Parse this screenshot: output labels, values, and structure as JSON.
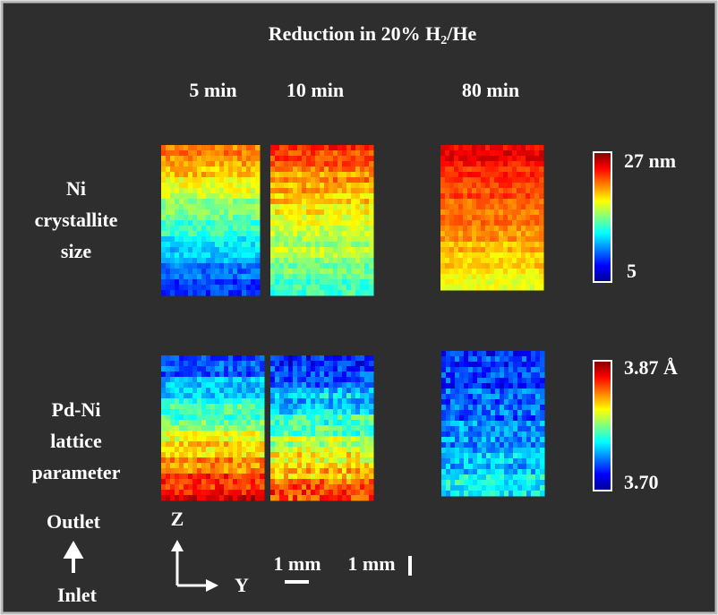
{
  "title": [
    "Reduction in 20% H",
    "2",
    "/He"
  ],
  "columns": [
    "5 min",
    "10 min",
    "80 min"
  ],
  "rows": [
    {
      "label": [
        "Ni",
        "crystallite",
        "size"
      ],
      "scale_max": "27 nm",
      "scale_min": "5"
    },
    {
      "label": [
        "Pd-Ni",
        "lattice",
        "parameter"
      ],
      "scale_max": "3.87 Å",
      "scale_min": "3.70"
    }
  ],
  "flow": {
    "top": "Outlet",
    "bottom": "Inlet"
  },
  "axes": {
    "vertical": "Z",
    "horizontal": "Y"
  },
  "scale_bars": [
    "1 mm",
    "1 mm"
  ]
}
